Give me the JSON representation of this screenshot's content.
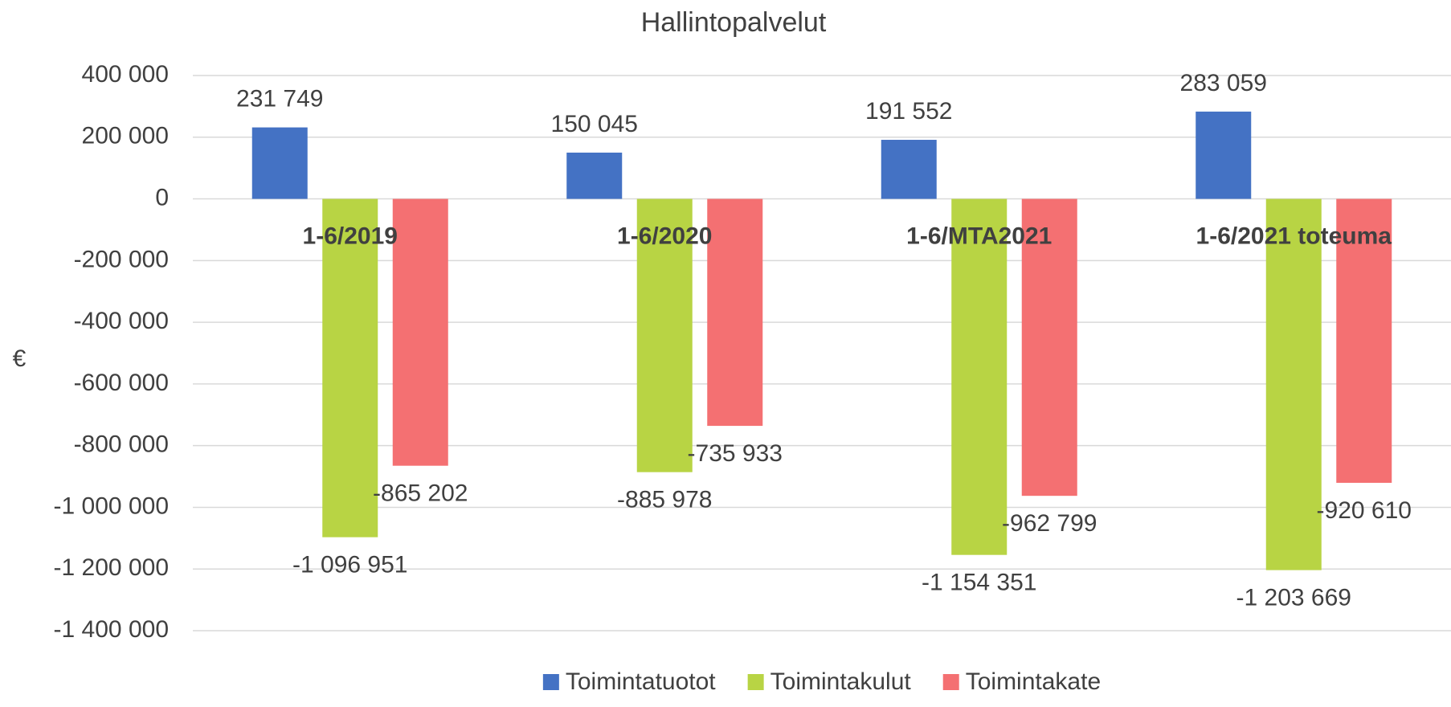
{
  "chart_data": {
    "type": "bar",
    "title": "Hallintopalvelut",
    "y_label": "€",
    "categories": [
      "1-6/2019",
      "1-6/2020",
      "1-6/MTA2021",
      "1-6/2021 toteuma"
    ],
    "series": [
      {
        "name": "Toimintatuotot",
        "color": "#4472c4",
        "values": [
          231749,
          150045,
          191552,
          283059
        ],
        "value_labels": [
          "231 749",
          "150 045",
          "191 552",
          "283 059"
        ]
      },
      {
        "name": "Toimintakulut",
        "color": "#b8d444",
        "values": [
          -1096951,
          -885978,
          -1154351,
          -1203669
        ],
        "value_labels": [
          "-1 096 951",
          "-885 978",
          "-1 154 351",
          "-1 203 669"
        ]
      },
      {
        "name": "Toimintakate",
        "color": "#f47072",
        "values": [
          -865202,
          -735933,
          -962799,
          -920610
        ],
        "value_labels": [
          "-865 202",
          "-735 933",
          "-962 799",
          "-920 610"
        ]
      }
    ],
    "ylim": [
      -1400000,
      400000
    ],
    "yticks": [
      {
        "value": 400000,
        "label": "400 000"
      },
      {
        "value": 200000,
        "label": "200 000"
      },
      0,
      {
        "value": -200000,
        "label": "-200 000"
      },
      {
        "value": -400000,
        "label": "-400 000"
      },
      {
        "value": -600000,
        "label": "-600 000"
      },
      {
        "value": -800000,
        "label": "-800 000"
      },
      {
        "value": -1000000,
        "label": "-1 000 000"
      },
      {
        "value": -1200000,
        "label": "-1 200 000"
      },
      {
        "value": -1400000,
        "label": "-1 400 000"
      }
    ],
    "grid": true,
    "legend": "bottom"
  }
}
